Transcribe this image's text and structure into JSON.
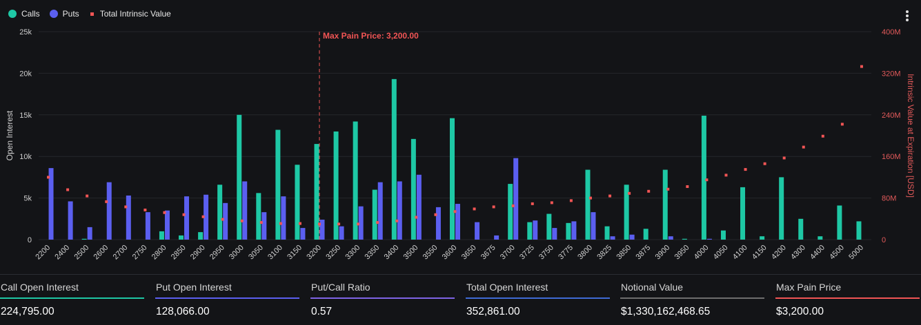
{
  "legend": {
    "calls": "Calls",
    "puts": "Puts",
    "total_intrinsic": "Total Intrinsic Value"
  },
  "menu": {
    "icon": "more-vertical-icon"
  },
  "colors": {
    "calls": "#1ec8a5",
    "puts": "#5b5ff0",
    "intrinsic": "#f25555",
    "max_pain": "#f25555",
    "notional": "#6e6e6e",
    "total_oi": "#3f6bd6"
  },
  "chart_data": {
    "type": "bar",
    "categories": [
      "2200",
      "2400",
      "2500",
      "2600",
      "2700",
      "2750",
      "2800",
      "2850",
      "2900",
      "2950",
      "3000",
      "3050",
      "3100",
      "3150",
      "3200",
      "3250",
      "3300",
      "3350",
      "3400",
      "3500",
      "3550",
      "3600",
      "3650",
      "3675",
      "3700",
      "3725",
      "3750",
      "3775",
      "3800",
      "3825",
      "3850",
      "3875",
      "3900",
      "3950",
      "4000",
      "4050",
      "4100",
      "4150",
      "4200",
      "4300",
      "4400",
      "4500",
      "5000"
    ],
    "series": [
      {
        "name": "Calls",
        "axis": "left",
        "values": [
          0,
          0,
          100,
          0,
          0,
          0,
          1000,
          500,
          900,
          6600,
          15000,
          5600,
          13200,
          9000,
          11500,
          13000,
          14200,
          6000,
          19300,
          12100,
          0,
          14600,
          0,
          0,
          6700,
          2100,
          3100,
          2000,
          8400,
          1600,
          6600,
          1300,
          8400,
          100,
          14900,
          1100,
          6300,
          400,
          7500,
          2500,
          400,
          4100,
          2200
        ]
      },
      {
        "name": "Puts",
        "axis": "left",
        "values": [
          8600,
          4600,
          1500,
          6900,
          5300,
          3300,
          3500,
          5200,
          5400,
          4400,
          7000,
          3300,
          5200,
          1400,
          2400,
          1600,
          4000,
          6900,
          7000,
          7800,
          3900,
          4300,
          2100,
          500,
          9800,
          2300,
          1400,
          2200,
          3300,
          400,
          600,
          0,
          400,
          0,
          100,
          0,
          0,
          0,
          0,
          0,
          0,
          0,
          0
        ]
      },
      {
        "name": "Total Intrinsic Value",
        "axis": "right",
        "type": "scatter",
        "values": [
          120,
          96,
          84,
          73,
          63,
          57,
          52,
          48,
          44,
          39,
          36,
          33,
          31,
          31,
          30,
          30,
          30,
          33,
          36,
          43,
          48,
          54,
          59,
          63,
          65,
          69,
          71,
          75,
          80,
          84,
          89,
          93,
          97,
          102,
          115,
          124,
          135,
          146,
          157,
          178,
          199,
          222,
          333
        ]
      }
    ],
    "ylabel": "Open Interest",
    "y2label": "Intrinsic Value at Expiration [USD]",
    "ylim": [
      0,
      25000
    ],
    "y2lim": [
      0,
      400
    ],
    "yticks": [
      "0",
      "5k",
      "10k",
      "15k",
      "20k",
      "25k"
    ],
    "y2ticks": [
      "0",
      "80M",
      "160M",
      "240M",
      "320M",
      "400M"
    ],
    "annotation": {
      "label": "Max Pain Price: 3,200.00",
      "category": "3200"
    },
    "grid": true,
    "legend_position": "top-left"
  },
  "stats": [
    {
      "key": "calls",
      "label": "Call Open Interest",
      "value": "224,795.00",
      "color": "#1ec8a5"
    },
    {
      "key": "puts",
      "label": "Put Open Interest",
      "value": "128,066.00",
      "color": "#5b5ff0"
    },
    {
      "key": "ratio",
      "label": "Put/Call Ratio",
      "value": "0.57",
      "color": "#7f64e6"
    },
    {
      "key": "total",
      "label": "Total Open Interest",
      "value": "352,861.00",
      "color": "#3f6bd6"
    },
    {
      "key": "notional",
      "label": "Notional Value",
      "value": "$1,330,162,468.65",
      "color": "#6e6e6e"
    },
    {
      "key": "maxpain",
      "label": "Max Pain Price",
      "value": "$3,200.00",
      "color": "#f25555"
    }
  ]
}
